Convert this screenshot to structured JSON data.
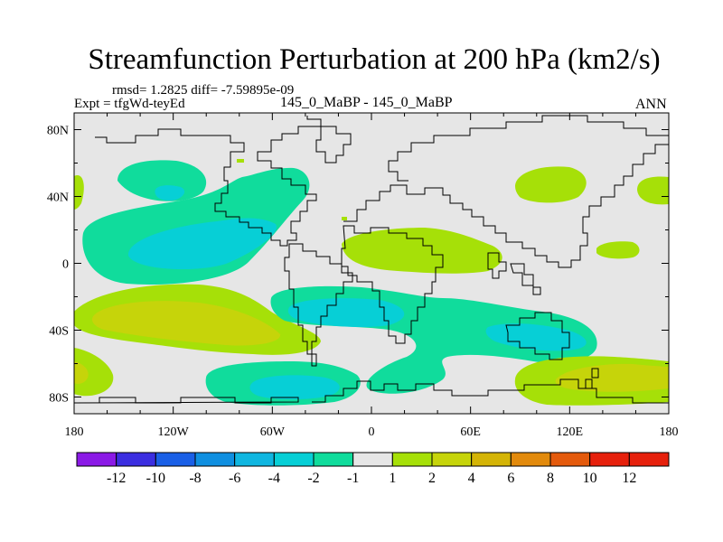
{
  "chart_data": {
    "type": "heatmap",
    "title": "Streamfunction Perturbation at 200 hPa (km2/s)",
    "subtitle": "rmsd= 1.2825 diff= -7.59895e-09",
    "left_label": "Expt = tfgWd-teyEd",
    "center_label": "145_0_MaBP - 145_0_MaBP",
    "right_label": "ANN",
    "x_ticks": [
      "180",
      "120W",
      "60W",
      "0",
      "60E",
      "120E",
      "180"
    ],
    "x_tick_values": [
      -180,
      -120,
      -60,
      0,
      60,
      120,
      180
    ],
    "y_ticks": [
      "80N",
      "40N",
      "0",
      "40S",
      "80S"
    ],
    "y_tick_values": [
      80,
      40,
      0,
      -40,
      -80
    ],
    "xlim": [
      -180,
      180
    ],
    "ylim": [
      -90,
      90
    ],
    "units": "km2/s",
    "colorbar": {
      "labels": [
        "-12",
        "-10",
        "-8",
        "-6",
        "-4",
        "-2",
        "-1",
        "1",
        "2",
        "4",
        "6",
        "8",
        "10",
        "12"
      ],
      "colors": [
        "#8b1ae6",
        "#3b2ee0",
        "#1a5fe6",
        "#0f8fe0",
        "#10b6e0",
        "#07cfd6",
        "#10dc9c",
        "#e6e6e6",
        "#a6e008",
        "#c6d40a",
        "#d4b406",
        "#e28a0c",
        "#e45a0c",
        "#e6200c",
        "#e6200c"
      ]
    },
    "anomalies": [
      {
        "region": "North Pacific subtropics",
        "lon": -150,
        "lat": 20,
        "level": "-4 to -2"
      },
      {
        "region": "Northeast Pacific",
        "lon": -125,
        "lat": 42,
        "level": "-4 to -2"
      },
      {
        "region": "North Atlantic",
        "lon": -40,
        "lat": 35,
        "level": "-2 to -1"
      },
      {
        "region": "Eastern North Pacific edge",
        "lon": -178,
        "lat": 45,
        "level": "1 to 2"
      },
      {
        "region": "South Pacific",
        "lon": -135,
        "lat": -30,
        "level": "4 to 6"
      },
      {
        "region": "Southern Ocean (Pacific sector)",
        "lon": -178,
        "lat": -65,
        "level": "4 to 6"
      },
      {
        "region": "Tropical South Atlantic",
        "lon": -10,
        "lat": -22,
        "level": "-4 to -2"
      },
      {
        "region": "Southern Ocean (Atlantic)",
        "lon": -70,
        "lat": -68,
        "level": "-4 to -2"
      },
      {
        "region": "Indian Ocean",
        "lon": 75,
        "lat": -40,
        "level": "-4 to -2"
      },
      {
        "region": "North Africa / Arabia",
        "lon": 45,
        "lat": 15,
        "level": "1 to 2"
      },
      {
        "region": "Northwest Pacific",
        "lon": 135,
        "lat": 12,
        "level": "1 to 2"
      },
      {
        "region": "North Pacific (East Asia)",
        "lon": 110,
        "lat": 48,
        "level": "1 to 2"
      },
      {
        "region": "Southern Ocean (Pacific)",
        "lon": 150,
        "lat": -65,
        "level": "4 to 6"
      }
    ]
  }
}
